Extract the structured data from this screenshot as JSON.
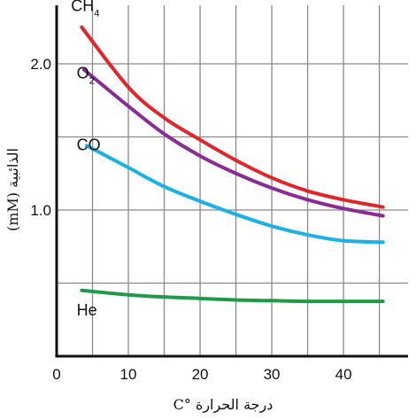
{
  "chart_data": {
    "type": "line",
    "xlabel": "درجة الحرارة °C",
    "ylabel": "الذائبية (mM)",
    "xlim": [
      0,
      49
    ],
    "ylim": [
      0,
      2.4
    ],
    "x_ticks": [
      0,
      10,
      20,
      30,
      40
    ],
    "y_ticks": [
      1.0,
      2.0
    ],
    "x_gridlines": [
      0,
      5,
      10,
      15,
      20,
      25,
      30,
      35,
      40,
      45
    ],
    "y_gridlines": [
      0.5,
      1.0,
      1.5,
      2.0
    ],
    "grid": true,
    "series": [
      {
        "name": "CH₄",
        "name_main": "CH",
        "name_sub": "4",
        "color": "#e0262a",
        "x": [
          3.5,
          10,
          15,
          20,
          25,
          30,
          35,
          40,
          45.5
        ],
        "y": [
          2.25,
          1.84,
          1.63,
          1.48,
          1.34,
          1.22,
          1.13,
          1.07,
          1.02
        ]
      },
      {
        "name": "O₂",
        "name_main": "O",
        "name_sub": "2",
        "color": "#8b2c95",
        "x": [
          3.8,
          10,
          15,
          20,
          25,
          30,
          35,
          40,
          45.5
        ],
        "y": [
          1.96,
          1.71,
          1.52,
          1.37,
          1.25,
          1.15,
          1.07,
          1.01,
          0.96
        ]
      },
      {
        "name": "CO",
        "name_main": "CO",
        "name_sub": "",
        "color": "#1ab0e8",
        "x": [
          4.2,
          10,
          15,
          20,
          25,
          30,
          35,
          40,
          45.5
        ],
        "y": [
          1.44,
          1.29,
          1.16,
          1.06,
          0.97,
          0.89,
          0.83,
          0.79,
          0.78
        ]
      },
      {
        "name": "He",
        "name_main": "He",
        "name_sub": "",
        "color": "#1e9a4a",
        "x": [
          3.5,
          10,
          15,
          20,
          25,
          30,
          35,
          40,
          45.5
        ],
        "y": [
          0.45,
          0.42,
          0.405,
          0.395,
          0.385,
          0.38,
          0.375,
          0.375,
          0.375
        ]
      }
    ],
    "label_positions": [
      {
        "series": "CH₄",
        "x": 2.0,
        "y": 2.36
      },
      {
        "series": "O₂",
        "x": 2.8,
        "y": 1.9
      },
      {
        "series": "CO",
        "x": 2.8,
        "y": 1.41
      },
      {
        "series": "He",
        "x": 2.8,
        "y": 0.28
      }
    ]
  }
}
